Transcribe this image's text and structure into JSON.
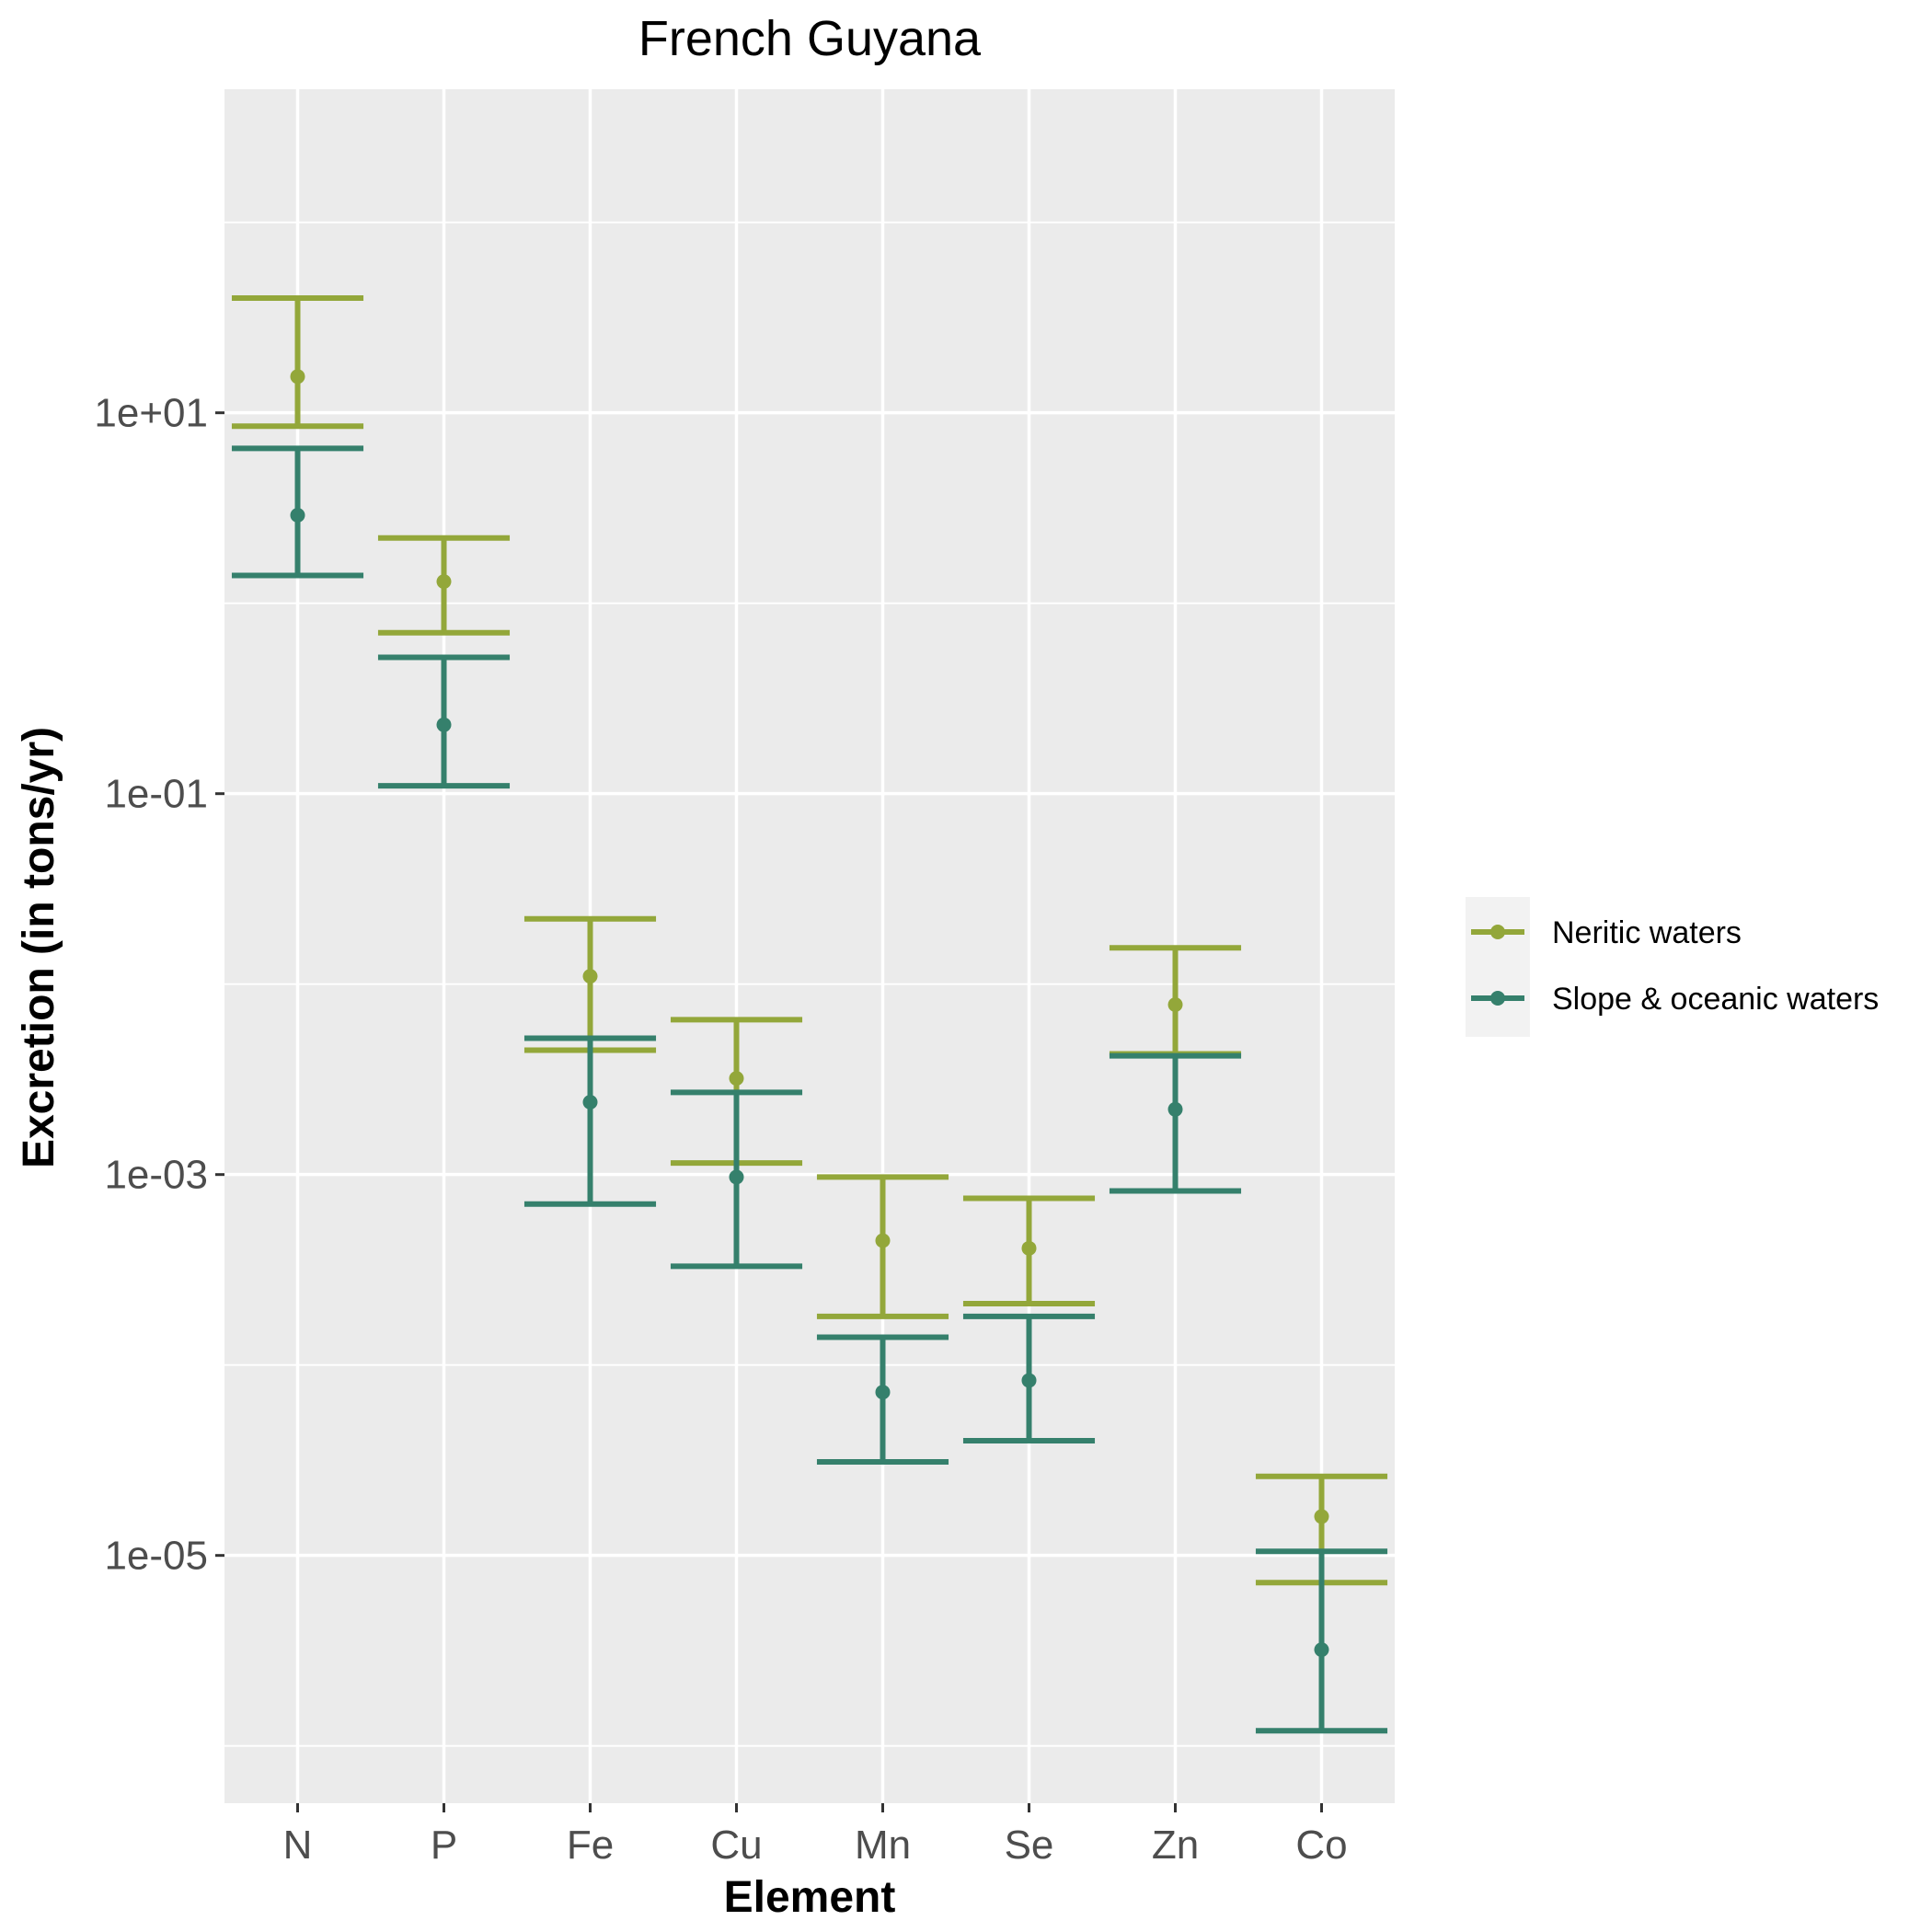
{
  "chart_data": {
    "type": "errorbar",
    "title": "French Guyana",
    "xlabel": "Element",
    "ylabel": "Excretion (in tons/yr)",
    "y_scale": "log10",
    "ylim": [
      5e-07,
      500
    ],
    "y_ticks": [
      10,
      0.1,
      0.001,
      1e-05
    ],
    "y_tick_labels": [
      "1e+01",
      "1e-01",
      "1e-03",
      "1e-05"
    ],
    "categories": [
      "N",
      "P",
      "Fe",
      "Cu",
      "Mn",
      "Se",
      "Zn",
      "Co"
    ],
    "grid": true,
    "legend_position": "right",
    "series": [
      {
        "name": "Neritic waters",
        "color": "#93a73a",
        "values": [
          15.5,
          1.3,
          0.011,
          0.0032,
          0.00045,
          0.00041,
          0.0078,
          1.6e-05
        ],
        "lower": [
          8.5,
          0.7,
          0.0045,
          0.00115,
          0.00018,
          0.00021,
          0.0043,
          7.2e-06
        ],
        "upper": [
          40,
          2.2,
          0.022,
          0.0065,
          0.00097,
          0.00075,
          0.0155,
          2.6e-05
        ]
      },
      {
        "name": "Slope & oceanic waters",
        "color": "#35806c",
        "values": [
          2.9,
          0.23,
          0.0024,
          0.00097,
          7.2e-05,
          8.3e-05,
          0.0022,
          3.2e-06
        ],
        "lower": [
          1.4,
          0.11,
          0.0007,
          0.00033,
          3.1e-05,
          4e-05,
          0.00082,
          1.2e-06
        ],
        "upper": [
          6.5,
          0.52,
          0.0052,
          0.0027,
          0.00014,
          0.00018,
          0.0042,
          1.05e-05
        ]
      }
    ]
  }
}
